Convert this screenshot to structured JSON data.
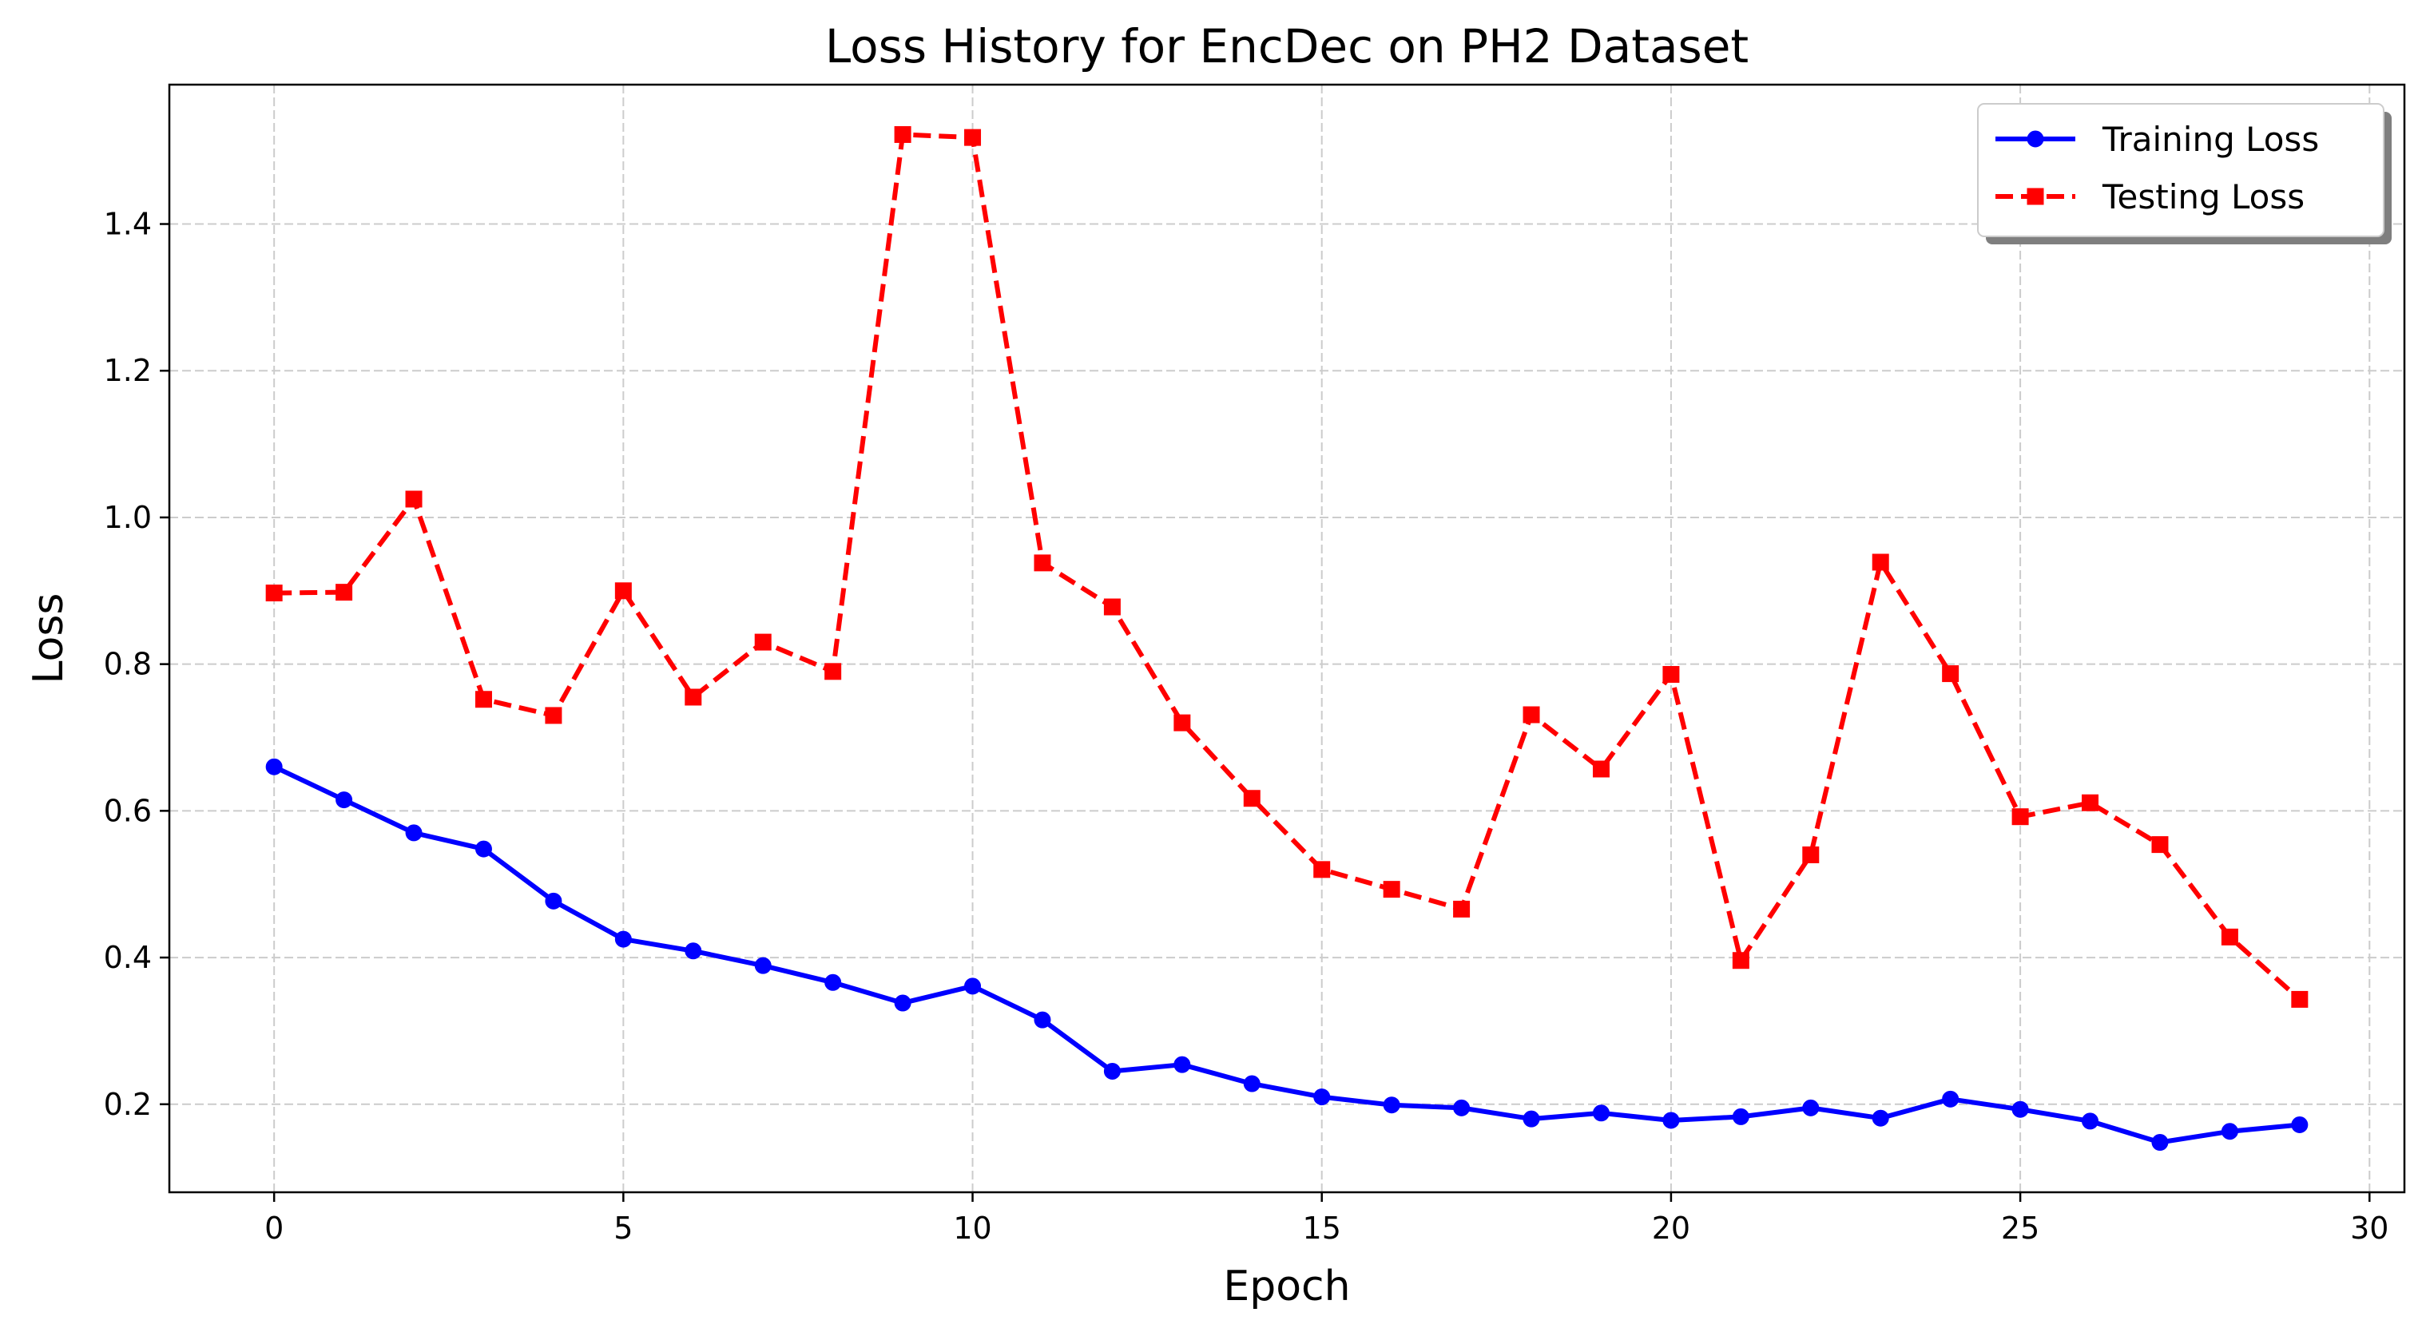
{
  "chart_data": {
    "type": "line",
    "title": "Loss History for EncDec on PH2 Dataset",
    "xlabel": "Epoch",
    "ylabel": "Loss",
    "xlim": [
      -1.5,
      30.5
    ],
    "ylim": [
      0.08,
      1.59
    ],
    "xticks": [
      0,
      5,
      10,
      15,
      20,
      25,
      30
    ],
    "yticks": [
      0.2,
      0.4,
      0.6,
      0.8,
      1.0,
      1.2,
      1.4
    ],
    "xtick_labels": [
      "0",
      "5",
      "10",
      "15",
      "20",
      "25",
      "30"
    ],
    "ytick_labels": [
      "0.2",
      "0.4",
      "0.6",
      "0.8",
      "1.0",
      "1.2",
      "1.4"
    ],
    "grid": true,
    "legend_position": "top-right",
    "x": [
      0,
      1,
      2,
      3,
      4,
      5,
      6,
      7,
      8,
      9,
      10,
      11,
      12,
      13,
      14,
      15,
      16,
      17,
      18,
      19,
      20,
      21,
      22,
      23,
      24,
      25,
      26,
      27,
      28,
      29
    ],
    "series": [
      {
        "name": "Training Loss",
        "color": "#0000ff",
        "line_style": "solid",
        "marker": "circle",
        "values": [
          0.66,
          0.615,
          0.57,
          0.548,
          0.477,
          0.425,
          0.409,
          0.389,
          0.366,
          0.338,
          0.361,
          0.315,
          0.245,
          0.254,
          0.228,
          0.21,
          0.199,
          0.195,
          0.18,
          0.188,
          0.178,
          0.183,
          0.195,
          0.181,
          0.207,
          0.193,
          0.177,
          0.148,
          0.163,
          0.172
        ]
      },
      {
        "name": "Testing Loss",
        "color": "#ff0000",
        "line_style": "dashed",
        "marker": "square",
        "values": [
          0.897,
          0.898,
          1.025,
          0.752,
          0.73,
          0.9,
          0.755,
          0.83,
          0.79,
          1.522,
          1.518,
          0.938,
          0.878,
          0.72,
          0.617,
          0.52,
          0.493,
          0.466,
          0.731,
          0.657,
          0.786,
          0.396,
          0.54,
          0.939,
          0.787,
          0.592,
          0.611,
          0.554,
          0.428,
          0.343
        ]
      }
    ]
  }
}
